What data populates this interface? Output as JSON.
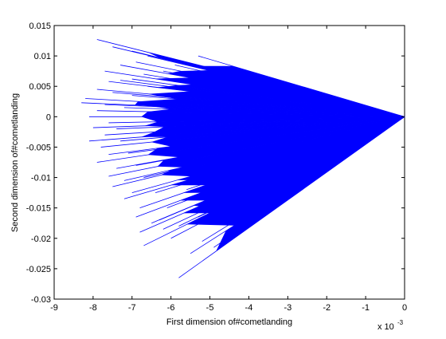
{
  "chart_data": {
    "type": "line",
    "title": "",
    "xlabel": "First dimension of#cometlanding",
    "ylabel": "Second dimension of#cometlanding",
    "x_multiplier_label": "x 10",
    "x_multiplier_exponent": "-3",
    "xlim": [
      -9,
      0
    ],
    "ylim": [
      -0.03,
      0.015
    ],
    "x_ticks": [
      -9,
      -8,
      -7,
      -6,
      -5,
      -4,
      -3,
      -2,
      -1,
      0
    ],
    "x_tick_labels": [
      "-9",
      "-8",
      "-7",
      "-6",
      "-5",
      "-4",
      "-3",
      "-2",
      "-1",
      "0"
    ],
    "y_ticks": [
      -0.03,
      -0.025,
      -0.02,
      -0.015,
      -0.01,
      -0.005,
      0,
      0.005,
      0.01,
      0.015
    ],
    "y_tick_labels": [
      "-0.03",
      "-0.025",
      "-0.02",
      "-0.015",
      "-0.01",
      "-0.005",
      "0",
      "0.005",
      "0.01",
      "0.015"
    ],
    "grid": false,
    "legend": "none",
    "series_color": "#0000ff",
    "series": [
      {
        "description_of_shape": "fan of straight line segments from the origin to scattered endpoints",
        "origin": [
          0,
          0
        ],
        "endpoints": [
          [
            -7.9,
            0.0127
          ],
          [
            -7.5,
            0.0115
          ],
          [
            -7.0,
            0.0108
          ],
          [
            -6.6,
            0.01
          ],
          [
            -6.2,
            0.0095
          ],
          [
            -5.8,
            0.0092
          ],
          [
            -5.3,
            0.01
          ],
          [
            -6.9,
            0.009
          ],
          [
            -7.3,
            0.0085
          ],
          [
            -7.7,
            0.0075
          ],
          [
            -7.3,
            0.006
          ],
          [
            -7.6,
            0.0058
          ],
          [
            -7.0,
            0.0062
          ],
          [
            -6.7,
            0.007
          ],
          [
            -7.9,
            0.0045
          ],
          [
            -7.5,
            0.004
          ],
          [
            -8.2,
            0.003
          ],
          [
            -7.7,
            0.002
          ],
          [
            -8.3,
            0.0023
          ],
          [
            -7.9,
            0.001
          ],
          [
            -8.1,
            0.0
          ],
          [
            -7.6,
            -0.001
          ],
          [
            -8.0,
            -0.0018
          ],
          [
            -7.7,
            -0.003
          ],
          [
            -8.1,
            -0.004
          ],
          [
            -7.8,
            -0.005
          ],
          [
            -7.6,
            -0.0062
          ],
          [
            -7.9,
            -0.0075
          ],
          [
            -7.4,
            -0.0085
          ],
          [
            -7.6,
            -0.0098
          ],
          [
            -7.2,
            -0.0105
          ],
          [
            -7.5,
            -0.0115
          ],
          [
            -7.0,
            -0.0125
          ],
          [
            -7.2,
            -0.0135
          ],
          [
            -6.8,
            -0.015
          ],
          [
            -6.9,
            -0.0165
          ],
          [
            -6.5,
            -0.0175
          ],
          [
            -6.8,
            -0.019
          ],
          [
            -6.2,
            -0.0185
          ],
          [
            -6.7,
            -0.0212
          ],
          [
            -6.0,
            -0.02
          ],
          [
            -5.8,
            -0.0265
          ],
          [
            -5.5,
            -0.0225
          ],
          [
            -5.2,
            -0.0205
          ],
          [
            -4.9,
            -0.0215
          ],
          [
            -4.6,
            -0.019
          ],
          [
            -4.2,
            -0.0185
          ],
          [
            -3.8,
            -0.0165
          ],
          [
            -3.5,
            -0.0145
          ],
          [
            -3.2,
            -0.0135
          ],
          [
            -5.3,
            -0.0165
          ],
          [
            -6.1,
            -0.015
          ],
          [
            -6.4,
            -0.0125
          ],
          [
            -6.7,
            -0.01
          ],
          [
            -6.9,
            -0.008
          ],
          [
            -7.1,
            -0.006
          ],
          [
            -7.3,
            -0.004
          ],
          [
            -7.4,
            -0.002
          ],
          [
            -7.2,
            0.0015
          ],
          [
            -7.0,
            0.0035
          ],
          [
            -6.6,
            0.005
          ],
          [
            -6.2,
            0.0075
          ],
          [
            -5.9,
            0.0085
          ],
          [
            -5.0,
            0.008
          ],
          [
            -4.5,
            0.007
          ],
          [
            -5.6,
            -0.012
          ],
          [
            -5.0,
            -0.014
          ],
          [
            -4.4,
            -0.015
          ],
          [
            -5.8,
            -0.018
          ],
          [
            -6.3,
            -0.017
          ]
        ]
      }
    ]
  }
}
